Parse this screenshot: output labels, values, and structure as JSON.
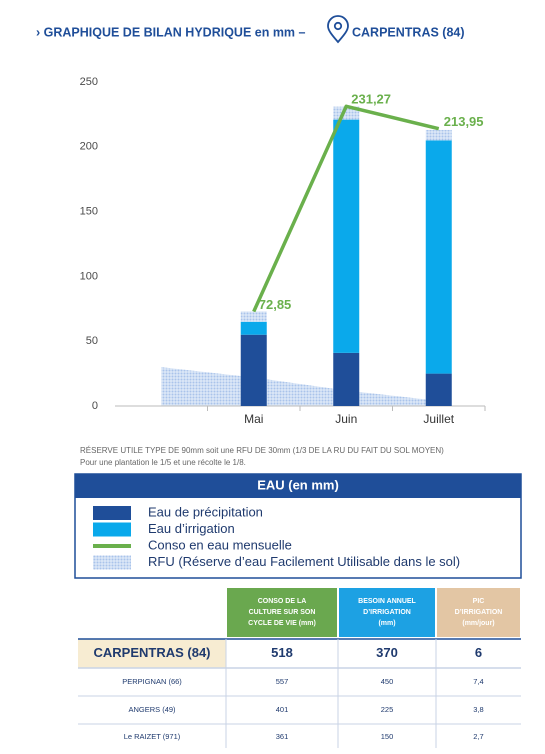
{
  "header": {
    "before": "› GRAPHIQUE DE BILAN HYDRIQUE en mm –",
    "after": "CARPENTRAS (84)"
  },
  "chart_data": {
    "type": "bar",
    "categories": [
      null,
      "Mai",
      "Juin",
      "Juillet"
    ],
    "ylim": [
      0,
      250
    ],
    "yticks": [
      0,
      50,
      100,
      150,
      200,
      250
    ],
    "series": [
      {
        "name": "Eau de précipitation",
        "type": "bar",
        "color": "#1f4e99",
        "values": [
          null,
          55,
          41,
          25
        ]
      },
      {
        "name": "Eau d’irrigation",
        "type": "bar",
        "color": "#0aa9eb",
        "values": [
          null,
          10,
          180,
          180
        ]
      },
      {
        "name": "Conso en eau mensuelle",
        "type": "line",
        "color": "#6ab04c",
        "values": [
          null,
          72.85,
          231.27,
          213.95
        ],
        "value_labels": [
          null,
          "72,85",
          "231,27",
          "213,95"
        ]
      },
      {
        "name": "RFU (Réserve d’eau Facilement Utilisable dans le sol)",
        "type": "bar",
        "color": "#a9c4ea",
        "values": [
          null,
          8,
          10,
          8
        ],
        "area_values": [
          30,
          22,
          12,
          4
        ]
      }
    ],
    "notes": [
      "RÉSERVE UTILE TYPE DE 90mm soit une RFU DE 30mm (1/3 DE LA RU DU FAIT DU SOL MOYEN)",
      "Pour une plantation le 1/5 et une récolte le 1/8."
    ],
    "legend_title": "EAU (en mm)"
  },
  "table": {
    "headers": [
      [
        "CONSO DE LA",
        "CULTURE SUR SON",
        "CYCLE DE VIE (mm)"
      ],
      [
        "BESOIN ANNUEL",
        "D’IRRIGATION",
        "(mm)"
      ],
      [
        "PIC",
        "D’IRRIGATION",
        "(mm/jour)"
      ]
    ],
    "header_colors": [
      "#6aa84f",
      "#1da1e3",
      "#e3c6a4"
    ],
    "rows": [
      [
        "CARPENTRAS (84)",
        "518",
        "370",
        "6"
      ],
      [
        "PERPIGNAN (66)",
        "557",
        "450",
        "7,4"
      ],
      [
        "ANGERS (49)",
        "401",
        "225",
        "3,8"
      ],
      [
        "Le RAIZET (971)",
        "361",
        "150",
        "2,7"
      ]
    ]
  }
}
